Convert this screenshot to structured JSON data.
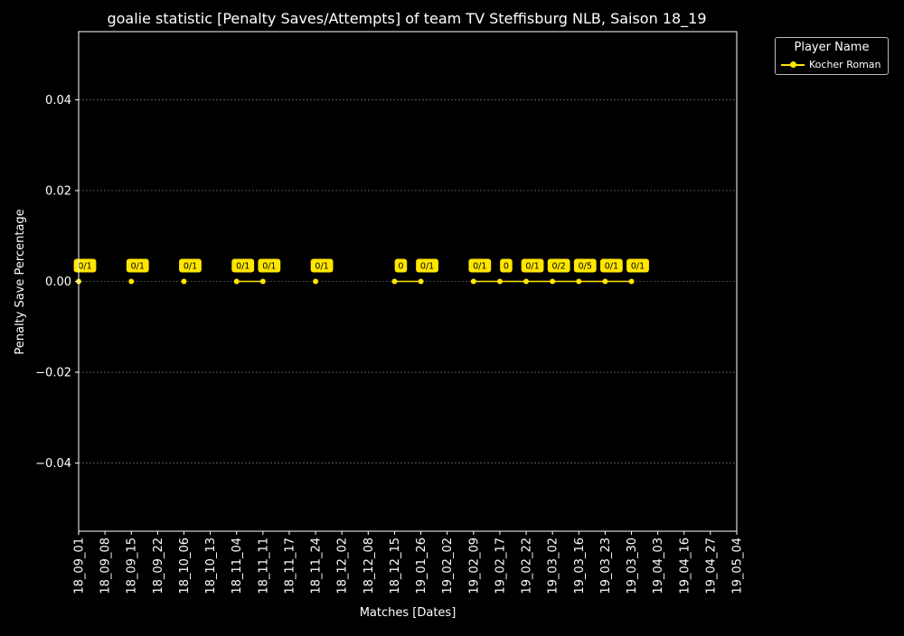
{
  "chart_data": {
    "type": "line",
    "title": "goalie statistic [Penalty Saves/Attempts] of team TV Steffisburg NLB, Saison 18_19",
    "xlabel": "Matches [Dates]",
    "ylabel": "Penalty Save Percentage",
    "x_ticks": [
      "18_09_01",
      "18_09_08",
      "18_09_15",
      "18_09_22",
      "18_10_06",
      "18_10_13",
      "18_11_04",
      "18_11_11",
      "18_11_17",
      "18_11_24",
      "18_12_02",
      "18_12_08",
      "18_12_15",
      "19_01_26",
      "19_02_02",
      "19_02_09",
      "19_02_17",
      "19_02_22",
      "19_03_02",
      "19_03_16",
      "19_03_23",
      "19_03_30",
      "19_04_03",
      "19_04_16",
      "19_04_27",
      "19_05_04"
    ],
    "y_ticks": [
      "0.04",
      "0.02",
      "0.00",
      "−0.02",
      "−0.04"
    ],
    "ylim": [
      -0.055,
      0.055
    ],
    "grid": true,
    "legend": {
      "title": "Player Name",
      "placement": "top-right outside"
    },
    "colors": {
      "series": "#ffe600",
      "background": "#000000",
      "text": "#ffffff",
      "grid": "#888888"
    },
    "series": [
      {
        "name": "Kocher Roman",
        "points": [
          {
            "x": "18_09_01",
            "y": 0.0,
            "label": "0/1",
            "segment": 1
          },
          {
            "x": "18_09_15",
            "y": 0.0,
            "label": "0/1",
            "segment": 2
          },
          {
            "x": "18_10_06",
            "y": 0.0,
            "label": "0/1",
            "segment": 3
          },
          {
            "x": "18_11_04",
            "y": 0.0,
            "label": "0/1",
            "segment": 4
          },
          {
            "x": "18_11_11",
            "y": 0.0,
            "label": "0/1",
            "segment": 4
          },
          {
            "x": "18_11_24",
            "y": 0.0,
            "label": "0/1",
            "segment": 5
          },
          {
            "x": "18_12_15",
            "y": 0.0,
            "label": "0",
            "segment": 6
          },
          {
            "x": "19_01_26",
            "y": 0.0,
            "label": "0/1",
            "segment": 6
          },
          {
            "x": "19_02_09",
            "y": 0.0,
            "label": "0/1",
            "segment": 7
          },
          {
            "x": "19_02_17",
            "y": 0.0,
            "label": "0",
            "segment": 7
          },
          {
            "x": "19_02_22",
            "y": 0.0,
            "label": "0/1",
            "segment": 7
          },
          {
            "x": "19_03_02",
            "y": 0.0,
            "label": "0/2",
            "segment": 7
          },
          {
            "x": "19_03_16",
            "y": 0.0,
            "label": "0/5",
            "segment": 7
          },
          {
            "x": "19_03_23",
            "y": 0.0,
            "label": "0/1",
            "segment": 7
          },
          {
            "x": "19_03_30",
            "y": 0.0,
            "label": "0/1",
            "segment": 7
          }
        ]
      }
    ]
  }
}
